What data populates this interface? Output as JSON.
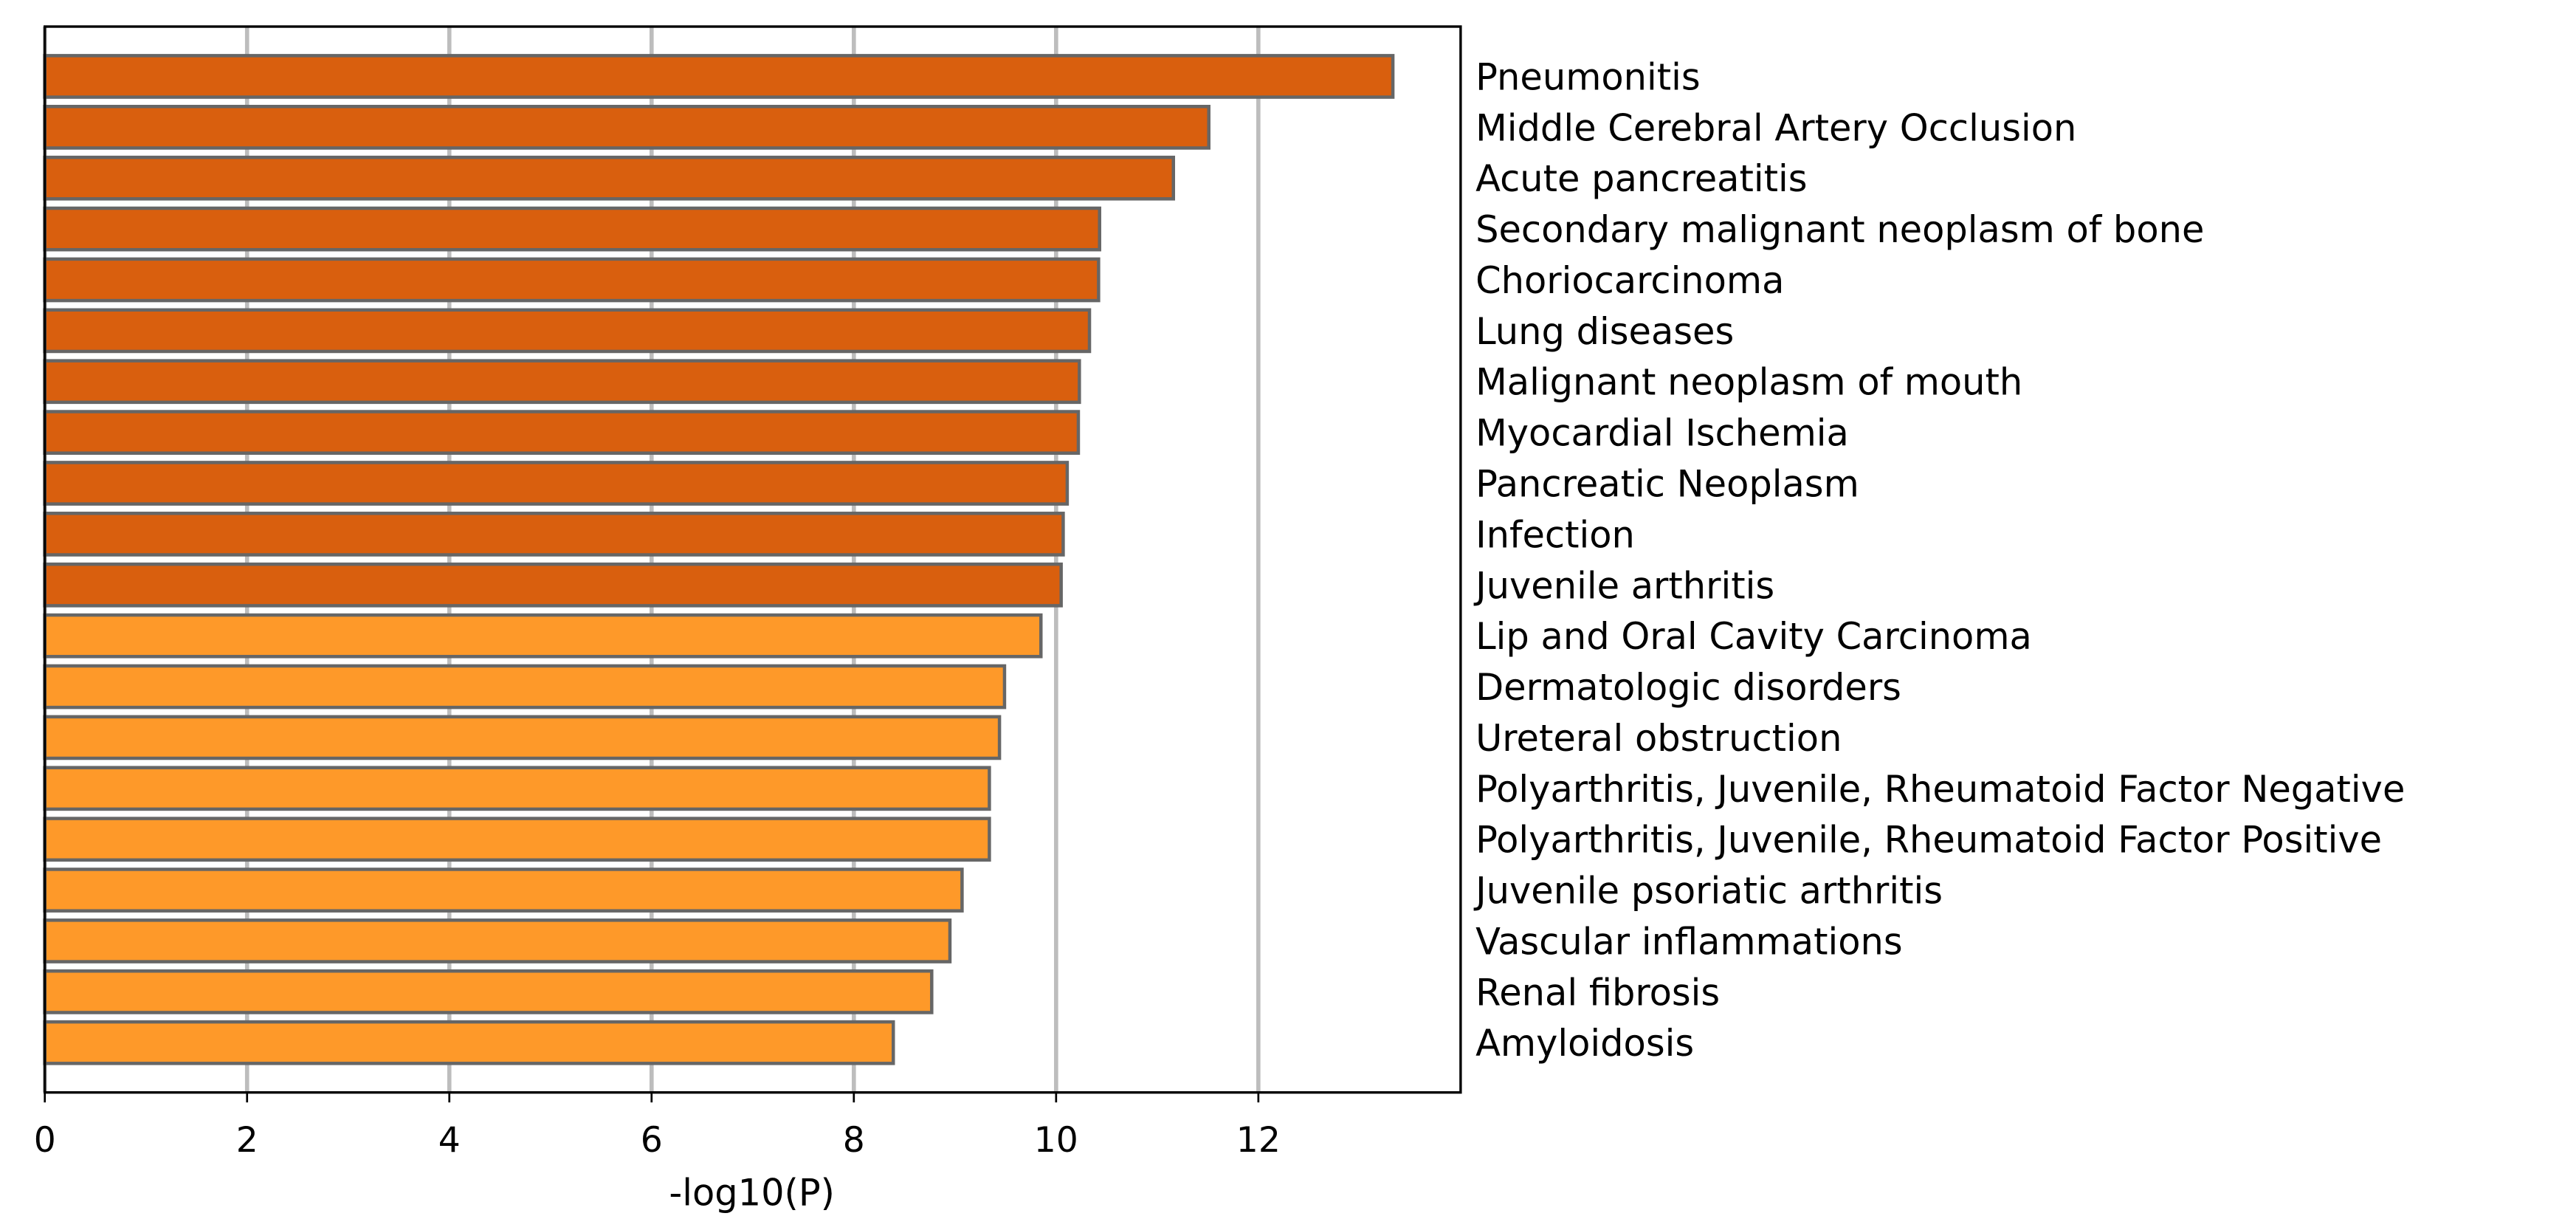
{
  "chart_data": {
    "type": "barh",
    "categories": [
      "Pneumonitis",
      "Middle Cerebral Artery Occlusion",
      "Acute pancreatitis",
      "Secondary malignant neoplasm of bone",
      "Choriocarcinoma",
      "Lung diseases",
      "Malignant neoplasm of mouth",
      "Myocardial Ischemia",
      "Pancreatic Neoplasm",
      "Infection",
      "Juvenile arthritis",
      "Lip and Oral Cavity Carcinoma",
      "Dermatologic disorders",
      "Ureteral obstruction",
      "Polyarthritis, Juvenile, Rheumatoid Factor Negative",
      "Polyarthritis, Juvenile, Rheumatoid Factor Positive",
      "Juvenile psoriatic arthritis",
      "Vascular inflammations",
      "Renal fibrosis",
      "Amyloidosis"
    ],
    "values": [
      13.33,
      11.51,
      11.16,
      10.43,
      10.42,
      10.33,
      10.23,
      10.22,
      10.11,
      10.07,
      10.05,
      9.85,
      9.49,
      9.44,
      9.34,
      9.34,
      9.07,
      8.95,
      8.77,
      8.39
    ],
    "colors": [
      "#d95f0e",
      "#d95f0e",
      "#d95f0e",
      "#d95f0e",
      "#d95f0e",
      "#d95f0e",
      "#d95f0e",
      "#d95f0e",
      "#d95f0e",
      "#d95f0e",
      "#d95f0e",
      "#fe9929",
      "#fe9929",
      "#fe9929",
      "#fe9929",
      "#fe9929",
      "#fe9929",
      "#fe9929",
      "#fe9929",
      "#fe9929"
    ],
    "x_label": "-log10(P)",
    "xlim": [
      0,
      14
    ],
    "xticks": [
      0,
      2,
      4,
      6,
      8,
      10,
      12
    ],
    "grid": true
  }
}
